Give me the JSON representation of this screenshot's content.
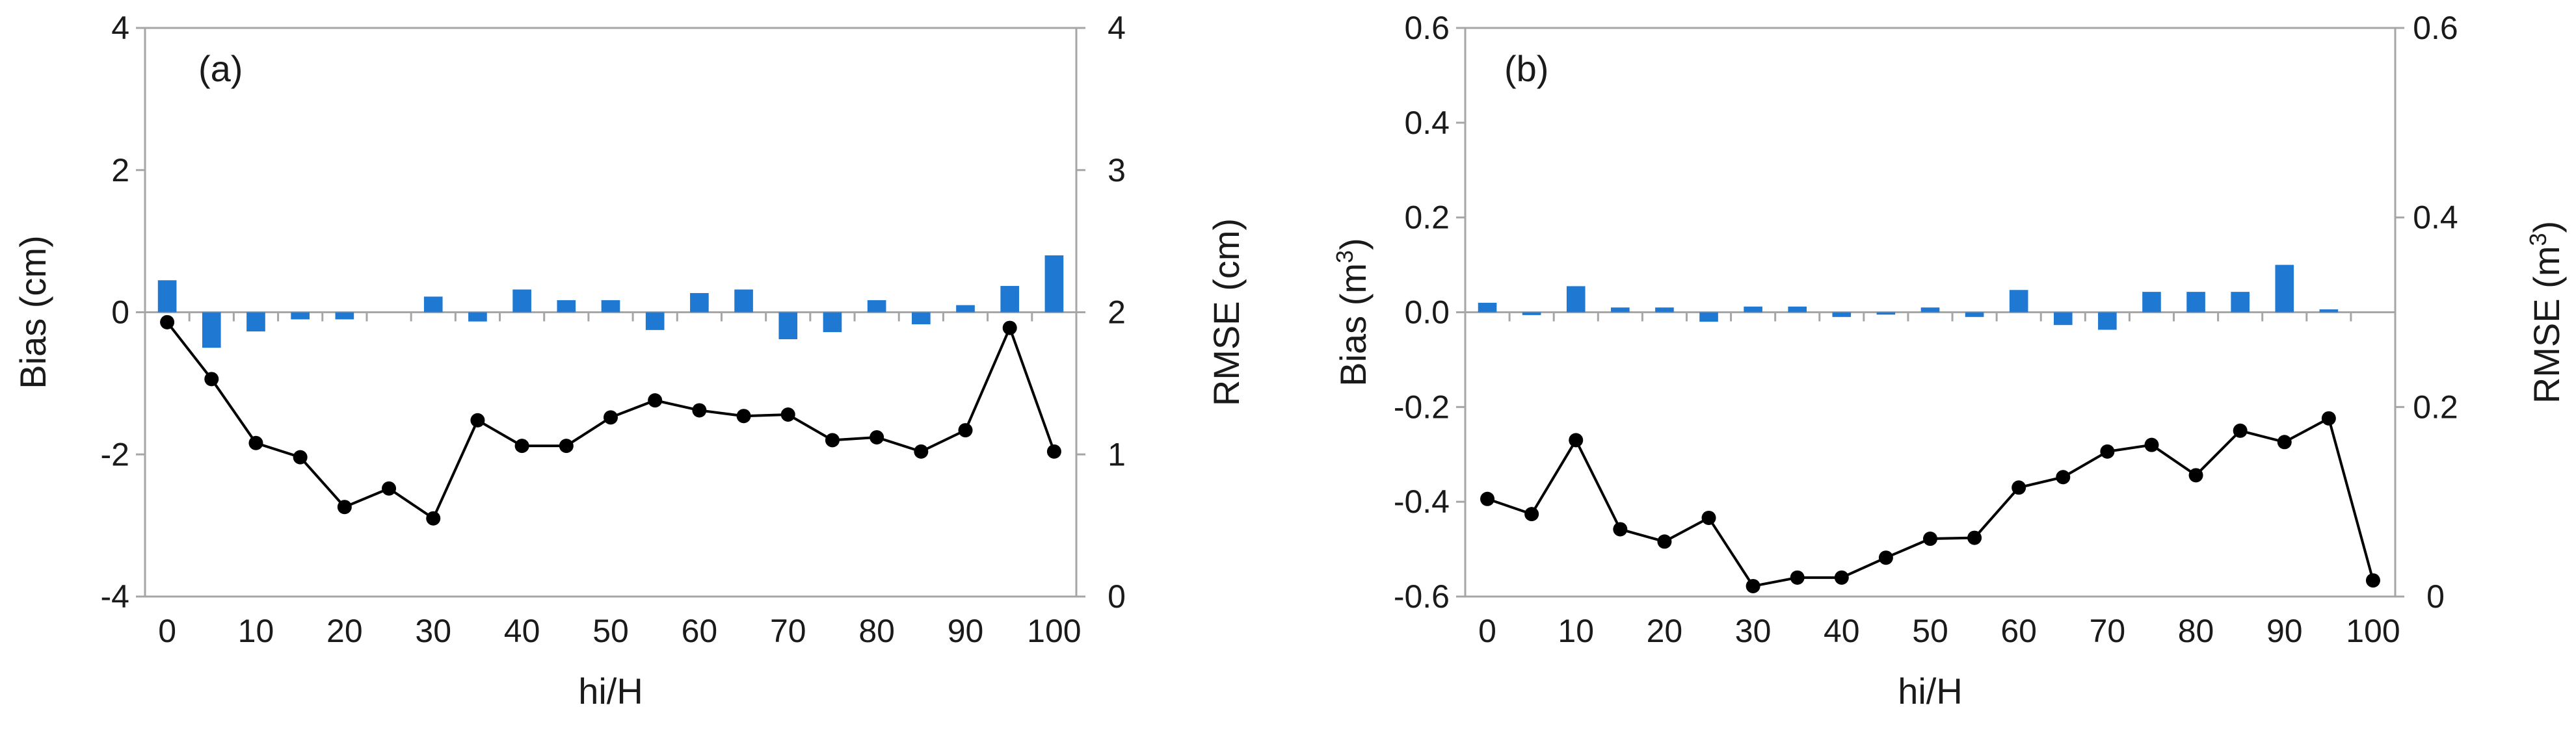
{
  "chart_data": [
    {
      "type": "bar+line",
      "panel_label": "(a)",
      "title": "",
      "xlabel": "hi/H",
      "ylabel": "Bias (cm)",
      "ylabel_main": "Bias (cm)",
      "ylabel_sup": "",
      "ylabel_end": "",
      "y2label": "RMSE (cm)",
      "y2label_main": "RMSE (cm)",
      "y2label_sup": "",
      "y2label_end": "",
      "ylim": [
        -4,
        4
      ],
      "y2lim": [
        0,
        4
      ],
      "yticks": [
        -4,
        -2,
        0,
        2,
        4
      ],
      "y2ticks": [
        0,
        1,
        2,
        3,
        4
      ],
      "ytick_labels": [
        "-4",
        "-2",
        "0",
        "2",
        "4"
      ],
      "y2tick_labels": [
        "0",
        "1",
        "2",
        "3",
        "4"
      ],
      "categories": [
        "0",
        "5",
        "10",
        "15",
        "20",
        "25",
        "30",
        "35",
        "40",
        "45",
        "50",
        "55",
        "60",
        "65",
        "70",
        "75",
        "80",
        "85",
        "90",
        "95",
        "100"
      ],
      "xtick_labels": [
        "0",
        "10",
        "20",
        "30",
        "40",
        "50",
        "60",
        "70",
        "80",
        "90",
        "100"
      ],
      "series": [
        {
          "name": "Bias",
          "kind": "bar",
          "axis": "left",
          "color": "#1f78d1",
          "values": [
            0.45,
            -0.5,
            -0.27,
            -0.1,
            -0.1,
            0.0,
            0.22,
            -0.13,
            0.32,
            0.17,
            0.17,
            -0.25,
            0.27,
            0.32,
            -0.38,
            -0.28,
            0.17,
            -0.17,
            0.1,
            0.37,
            0.8
          ]
        },
        {
          "name": "RMSE",
          "kind": "line",
          "axis": "right",
          "color": "#000000",
          "values": [
            1.93,
            1.53,
            1.08,
            0.98,
            0.63,
            0.76,
            0.55,
            1.24,
            1.06,
            1.06,
            1.26,
            1.38,
            1.31,
            1.27,
            1.28,
            1.1,
            1.12,
            1.02,
            1.17,
            1.89,
            1.02
          ]
        }
      ]
    },
    {
      "type": "bar+line",
      "panel_label": "(b)",
      "title": "",
      "xlabel": "hi/H",
      "ylabel": "Bias (m3)",
      "ylabel_main": "Bias (m",
      "ylabel_sup": "3",
      "ylabel_end": ")",
      "y2label": "RMSE (m3)",
      "y2label_main": "RMSE (m",
      "y2label_sup": "3",
      "y2label_end": ")",
      "ylim": [
        -0.6,
        0.6
      ],
      "y2lim": [
        0,
        0.6
      ],
      "yticks": [
        -0.6,
        -0.4,
        -0.2,
        0.0,
        0.2,
        0.4,
        0.6
      ],
      "y2ticks": [
        0,
        0.2,
        0.4,
        0.6
      ],
      "ytick_labels": [
        "-0.6",
        "-0.4",
        "-0.2",
        "0.0",
        "0.2",
        "0.4",
        "0.6"
      ],
      "y2tick_labels": [
        "0",
        "0.2",
        "0.4",
        "0.6"
      ],
      "categories": [
        "0",
        "5",
        "10",
        "15",
        "20",
        "25",
        "30",
        "35",
        "40",
        "45",
        "50",
        "55",
        "60",
        "65",
        "70",
        "75",
        "80",
        "85",
        "90",
        "95",
        "100"
      ],
      "xtick_labels": [
        "0",
        "10",
        "20",
        "30",
        "40",
        "50",
        "60",
        "70",
        "80",
        "90",
        "100"
      ],
      "series": [
        {
          "name": "Bias",
          "kind": "bar",
          "axis": "left",
          "color": "#1f78d1",
          "values": [
            0.02,
            -0.006,
            0.055,
            0.01,
            0.01,
            -0.02,
            0.012,
            0.012,
            -0.01,
            -0.005,
            0.01,
            -0.01,
            0.047,
            -0.027,
            -0.037,
            0.043,
            0.043,
            0.043,
            0.1,
            0.006,
            0.0
          ]
        },
        {
          "name": "RMSE",
          "kind": "line",
          "axis": "right",
          "color": "#000000",
          "values": [
            0.103,
            0.087,
            0.165,
            0.071,
            0.058,
            0.083,
            0.011,
            0.02,
            0.02,
            0.041,
            0.061,
            0.062,
            0.115,
            0.126,
            0.153,
            0.16,
            0.128,
            0.175,
            0.163,
            0.188,
            0.017
          ]
        }
      ]
    }
  ]
}
